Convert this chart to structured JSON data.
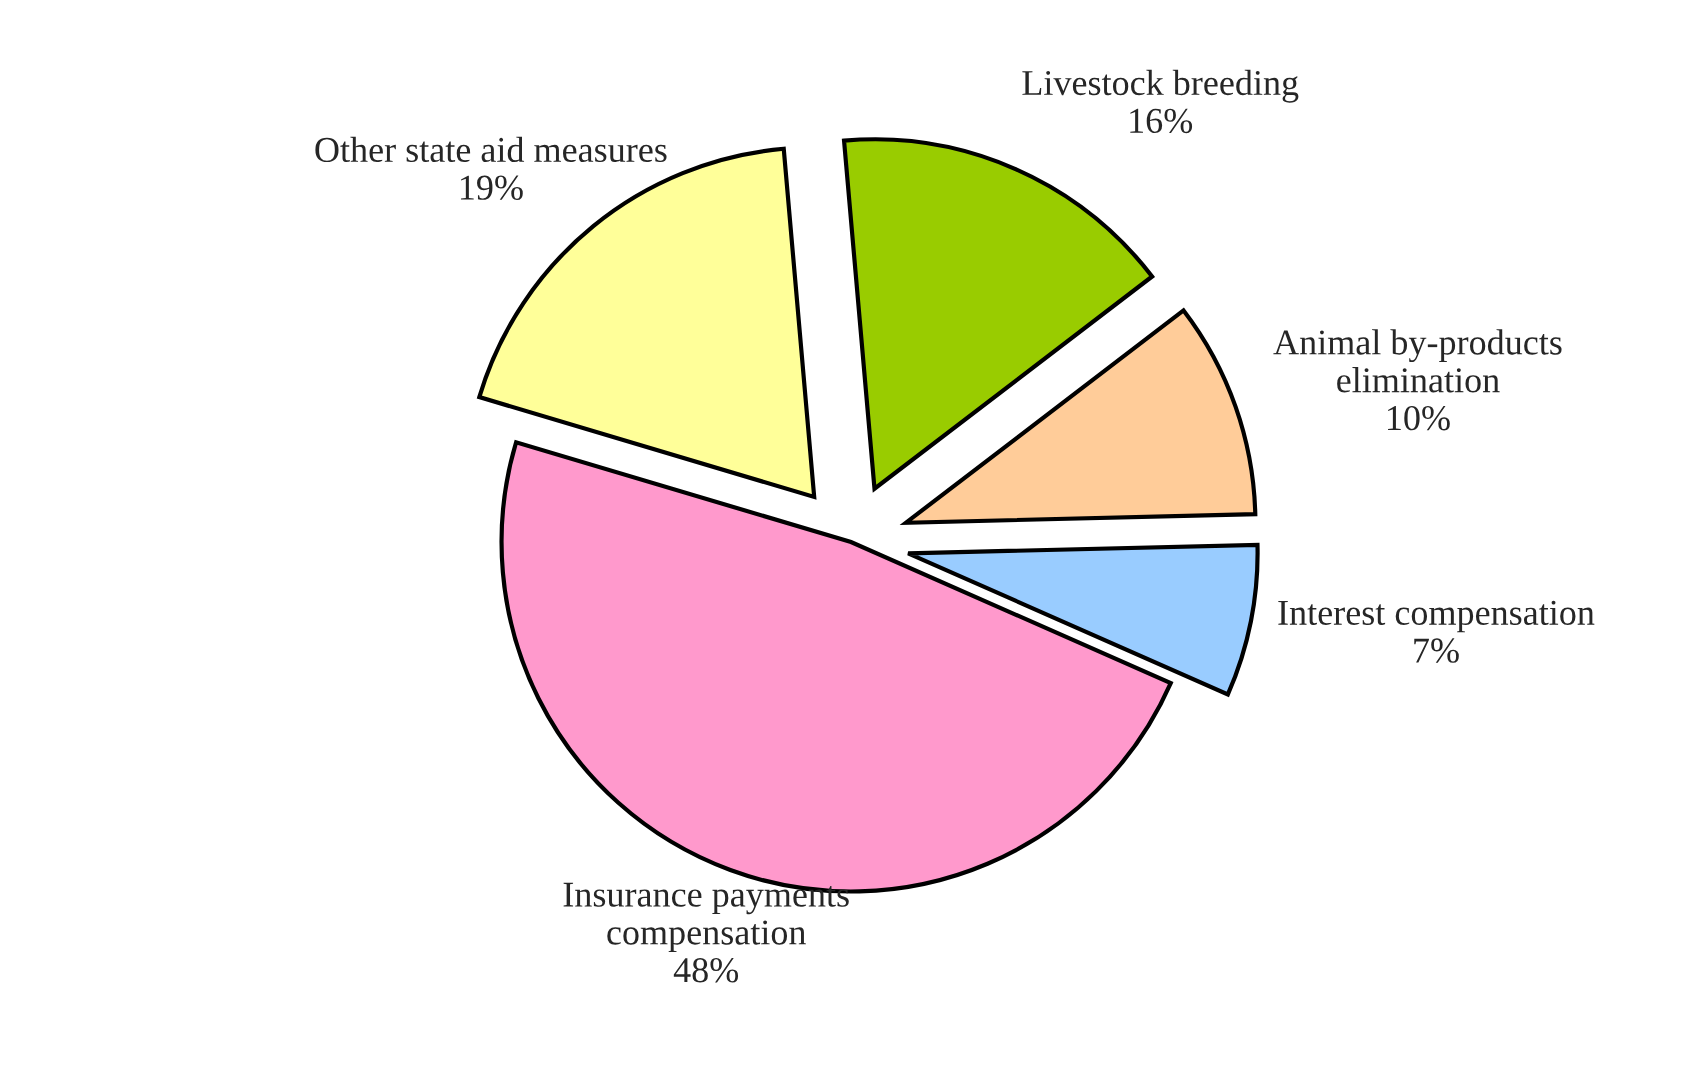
{
  "chart_data": {
    "type": "pie",
    "categories": [
      "Livestock breeding",
      "Animal by-products\nelimination",
      "Interest compensation",
      "Insurance payments\ncompensation",
      "Other state aid measures"
    ],
    "values": [
      16,
      10,
      7,
      48,
      19
    ],
    "colors": [
      "#99cc00",
      "#ffcc99",
      "#99ccff",
      "#ff99cc",
      "#ffff99"
    ],
    "value_labels": [
      "16%",
      "10%",
      "7%",
      "48%",
      "19%"
    ],
    "legend": false
  }
}
